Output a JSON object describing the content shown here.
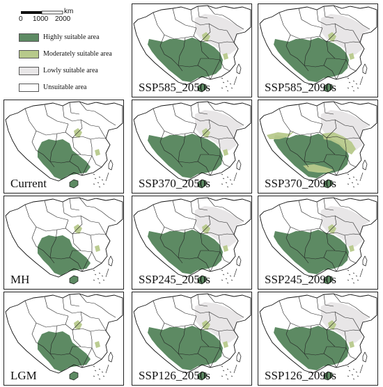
{
  "legend": {
    "scalebar": {
      "unit": "km",
      "ticks": [
        "0",
        "1000",
        "2000"
      ]
    },
    "items": [
      {
        "label": "Highly suitable area",
        "color": "#5d8a63"
      },
      {
        "label": "Moderately suitable area",
        "color": "#b7c98b"
      },
      {
        "label": "Lowly suitable area",
        "color": "#e8e6e7"
      },
      {
        "label": "Unsuitable area",
        "color": "#ffffff"
      }
    ]
  },
  "panels": [
    {
      "label": "SSP585_2050s",
      "highly_suitable": "south",
      "moderately_suitable": "sparse",
      "lowly_suitable": "east"
    },
    {
      "label": "SSP585_2090s",
      "highly_suitable": "south",
      "moderately_suitable": "sparse",
      "lowly_suitable": "east"
    },
    {
      "label": "Current",
      "highly_suitable": "southwest",
      "moderately_suitable": "sparse",
      "lowly_suitable": "none"
    },
    {
      "label": "SSP370_2050s",
      "highly_suitable": "south",
      "moderately_suitable": "sparse",
      "lowly_suitable": "east"
    },
    {
      "label": "SSP370_2090s",
      "highly_suitable": "south",
      "moderately_suitable": "widespread",
      "lowly_suitable": "east"
    },
    {
      "label": "MH",
      "highly_suitable": "southwest",
      "moderately_suitable": "sparse",
      "lowly_suitable": "none"
    },
    {
      "label": "SSP245_2050s",
      "highly_suitable": "south",
      "moderately_suitable": "sparse",
      "lowly_suitable": "east"
    },
    {
      "label": "SSP245_2090s",
      "highly_suitable": "south",
      "moderately_suitable": "sparse",
      "lowly_suitable": "east"
    },
    {
      "label": "LGM",
      "highly_suitable": "southwest",
      "moderately_suitable": "sparse",
      "lowly_suitable": "none"
    },
    {
      "label": "SSP126_2050s",
      "highly_suitable": "south",
      "moderately_suitable": "sparse",
      "lowly_suitable": "east"
    },
    {
      "label": "SSP126_2090s",
      "highly_suitable": "south",
      "moderately_suitable": "sparse",
      "lowly_suitable": "east"
    }
  ]
}
